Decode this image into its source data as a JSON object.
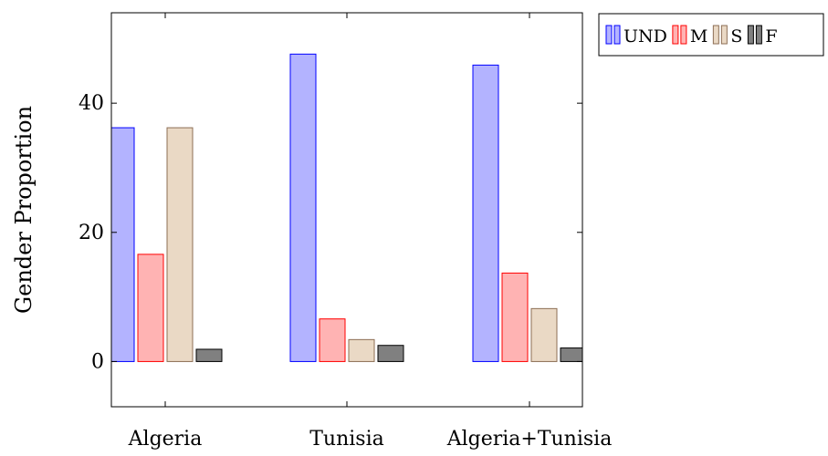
{
  "chart_data": {
    "type": "bar",
    "title": "",
    "xlabel": "",
    "ylabel": "Gender Proportion",
    "categories": [
      "Algeria",
      "Tunisia",
      "Algeria+Tunisia"
    ],
    "series": [
      {
        "name": "UND",
        "values": [
          36.2,
          47.6,
          45.9
        ],
        "fill": "#b3b3ff",
        "stroke": "#0000ff"
      },
      {
        "name": "M",
        "values": [
          16.6,
          6.6,
          13.7
        ],
        "fill": "#ffb3b3",
        "stroke": "#ff0000"
      },
      {
        "name": "S",
        "values": [
          36.2,
          3.4,
          8.2
        ],
        "fill": "#ead9c5",
        "stroke": "#8c6e54"
      },
      {
        "name": "F",
        "values": [
          1.9,
          2.5,
          2.1
        ],
        "fill": "#808080",
        "stroke": "#000000"
      }
    ],
    "ylim": [
      -7,
      54
    ],
    "yticks": [
      0,
      20,
      40
    ],
    "grid": false,
    "legend_position": "outside-top-right"
  }
}
